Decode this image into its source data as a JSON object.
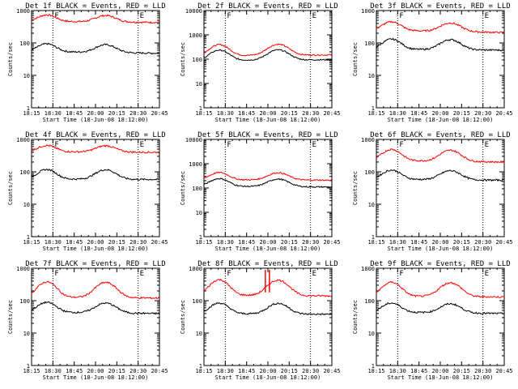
{
  "chart_data": {
    "type": "line",
    "layout": "3x3 grid",
    "common": {
      "ylabel": "Counts/sec",
      "xlabel": "Start Time (18-Jun-08 18:12:00)",
      "xtick_labels": [
        "18:15",
        "18:30",
        "18:45",
        "20:00",
        "20:15",
        "20:30",
        "20:45"
      ],
      "series_colors": {
        "events": "#000000",
        "lld": "#ff0000"
      },
      "vline_times": [
        "18:30",
        "20:30"
      ],
      "marker_labels": [
        "F",
        "E"
      ],
      "yscale": "log",
      "grid": false
    },
    "panels": [
      {
        "title": "Det 1f BLACK = Events, RED = LLD",
        "ytick_labels": [
          "1",
          "10",
          "100",
          "1000"
        ],
        "ymax": 1000,
        "events": {
          "base": 55,
          "amp": 45,
          "end": 48
        },
        "lld": {
          "base": 470,
          "amp": 300,
          "end": 430
        }
      },
      {
        "title": "Det 2f BLACK = Events, RED = LLD",
        "ytick_labels": [
          "1",
          "10",
          "100",
          "1000",
          "10000"
        ],
        "ymax": 10000,
        "events": {
          "base": 90,
          "amp": 160,
          "end": 95
        },
        "lld": {
          "base": 140,
          "amp": 280,
          "end": 150
        }
      },
      {
        "title": "Det 3f BLACK = Events, RED = LLD",
        "ytick_labels": [
          "1",
          "10",
          "100",
          "1000"
        ],
        "ymax": 1000,
        "events": {
          "base": 65,
          "amp": 75,
          "end": 60
        },
        "lld": {
          "base": 250,
          "amp": 230,
          "end": 210
        }
      },
      {
        "title": "Det 4f BLACK = Events, RED = LLD",
        "ytick_labels": [
          "1",
          "10",
          "100",
          "1000"
        ],
        "ymax": 1000,
        "events": {
          "base": 60,
          "amp": 65,
          "end": 58
        },
        "lld": {
          "base": 420,
          "amp": 260,
          "end": 400
        }
      },
      {
        "title": "Det 5f BLACK = Events, RED = LLD",
        "ytick_labels": [
          "1",
          "10",
          "100",
          "1000",
          "10000"
        ],
        "ymax": 10000,
        "events": {
          "base": 120,
          "amp": 140,
          "end": 110
        },
        "lld": {
          "base": 220,
          "amp": 240,
          "end": 210
        }
      },
      {
        "title": "Det 6f BLACK = Events, RED = LLD",
        "ytick_labels": [
          "1",
          "10",
          "100",
          "1000"
        ],
        "ymax": 1000,
        "events": {
          "base": 60,
          "amp": 60,
          "end": 55
        },
        "lld": {
          "base": 230,
          "amp": 300,
          "end": 200
        }
      },
      {
        "title": "Det 7f BLACK = Events, RED = LLD",
        "ytick_labels": [
          "1",
          "10",
          "100",
          "1000"
        ],
        "ymax": 1000,
        "events": {
          "base": 45,
          "amp": 50,
          "end": 40
        },
        "lld": {
          "base": 130,
          "amp": 280,
          "end": 120
        }
      },
      {
        "title": "Det 8f BLACK = Events, RED = LLD",
        "ytick_labels": [
          "1",
          "10",
          "100",
          "1000"
        ],
        "ymax": 1000,
        "events": {
          "base": 40,
          "amp": 50,
          "end": 38
        },
        "lld": {
          "base": 150,
          "amp": 330,
          "end": 140
        },
        "spike": true
      },
      {
        "title": "Det 9f BLACK = Events, RED = LLD",
        "ytick_labels": [
          "1",
          "10",
          "100",
          "1000"
        ],
        "ymax": 1000,
        "events": {
          "base": 45,
          "amp": 45,
          "end": 40
        },
        "lld": {
          "base": 140,
          "amp": 260,
          "end": 130
        }
      }
    ]
  }
}
